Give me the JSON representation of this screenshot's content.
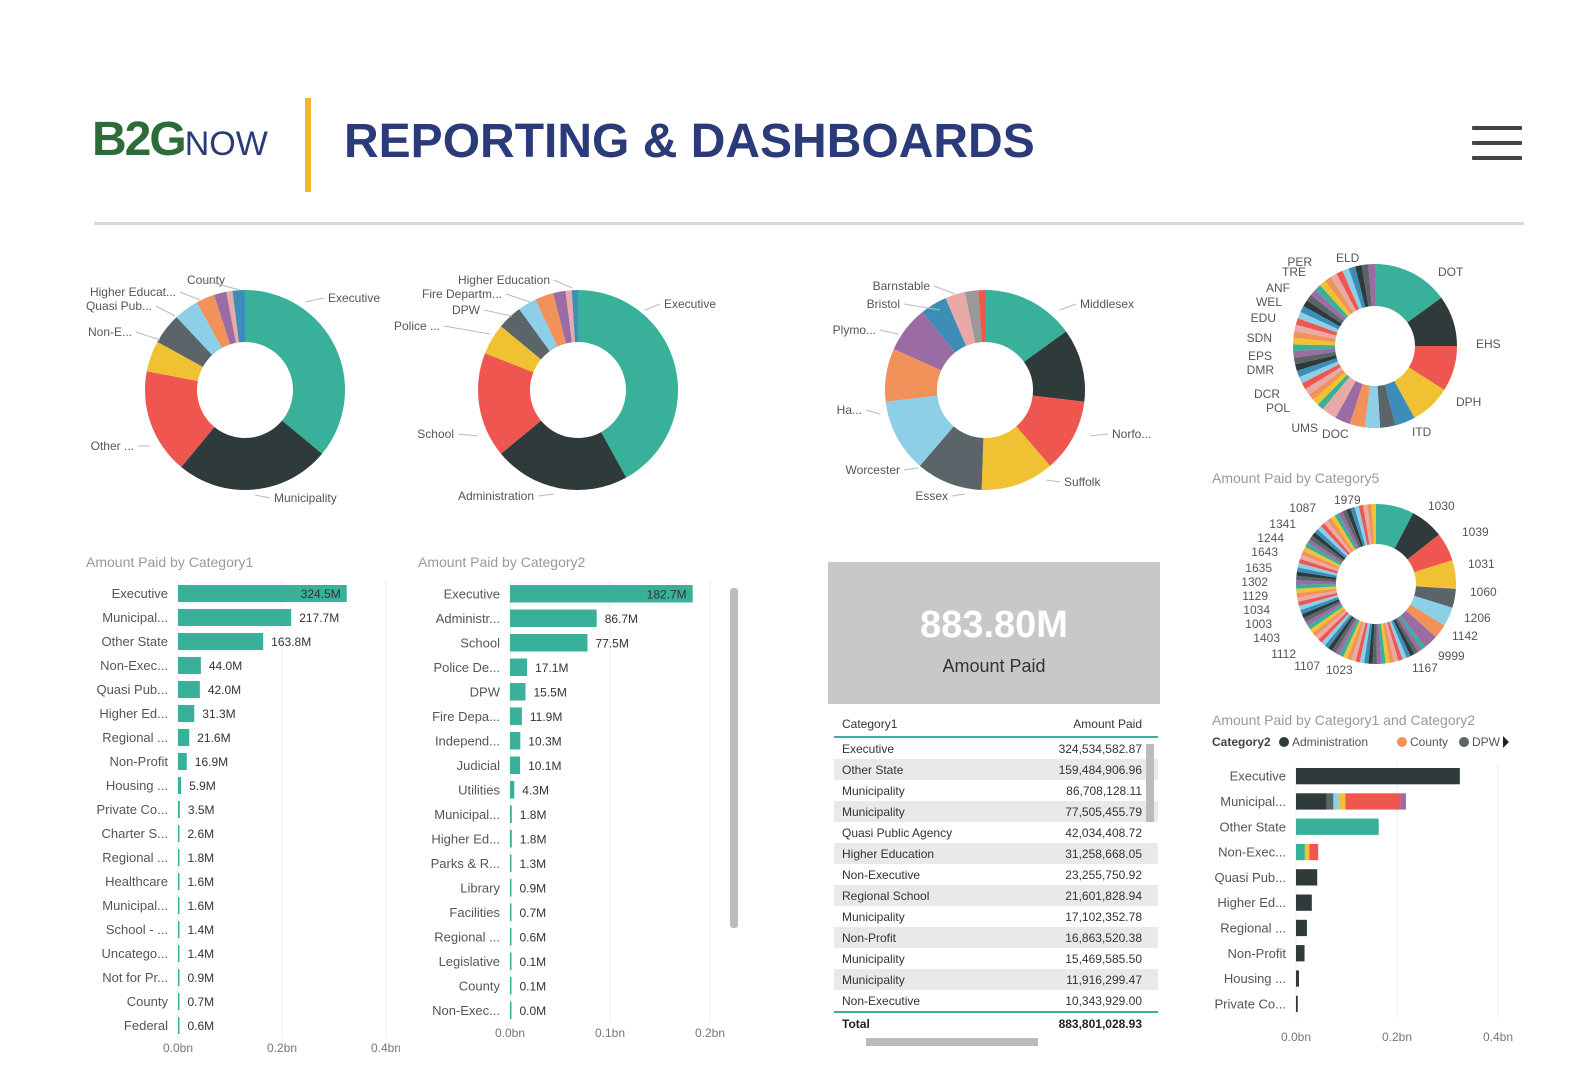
{
  "header": {
    "logo_b2g": "B2G",
    "logo_now": "NOW",
    "title": "REPORTING & DASHBOARDS",
    "menu_icon": "hamburger-icon"
  },
  "colors": {
    "teal": "#38b09a",
    "dark": "#2f3a3b",
    "red": "#ef5650",
    "yellow": "#f0c233",
    "slate": "#5b6469",
    "lightblue": "#8ccfe6",
    "orange": "#f09259",
    "purple": "#9a6ca3",
    "blue": "#3c8eb9",
    "pink": "#e9a9a6",
    "accent_gold": "#f1b82d",
    "navy": "#2b3a78"
  },
  "donuts": [
    {
      "labels": [
        "County",
        "Executive",
        "Higher Educat...",
        "Quasi Pub...",
        "Non-E...",
        "Other ...",
        "Municipality"
      ]
    },
    {
      "labels": [
        "Higher Education",
        "Fire Departm...",
        "DPW",
        "Police ...",
        "Executive",
        "School",
        "Administration"
      ]
    },
    {
      "labels": [
        "Barnstable",
        "Bristol",
        "Plymo...",
        "Ha...",
        "Worcester",
        "Essex",
        "Middlesex",
        "Norfo...",
        "Suffolk"
      ]
    },
    {
      "labels": [
        "PER",
        "ELD",
        "TRE",
        "ANF",
        "WEL",
        "EDU",
        "SDN",
        "EPS",
        "DMR",
        "DCR",
        "POL",
        "UMS",
        "DOC",
        "DOT",
        "EHS",
        "DPH",
        "ITD"
      ]
    },
    {
      "title": "Amount Paid by Category5",
      "labels": [
        "1087",
        "1979",
        "1341",
        "1244",
        "1643",
        "1635",
        "1302",
        "1129",
        "1034",
        "1003",
        "1403",
        "1112",
        "1107",
        "1023",
        "1030",
        "1039",
        "1031",
        "1060",
        "1206",
        "1142",
        "9999",
        "1167"
      ]
    }
  ],
  "chart_data": [
    {
      "type": "bar",
      "title": "Amount Paid by Category1",
      "categories": [
        "Executive",
        "Municipal...",
        "Other State",
        "Non-Exec...",
        "Quasi Pub...",
        "Higher Ed...",
        "Regional ...",
        "Non-Profit",
        "Housing ...",
        "Private Co...",
        "Charter S...",
        "Regional ...",
        "Healthcare",
        "Municipal...",
        "School - ...",
        "Uncatego...",
        "Not for Pr...",
        "County",
        "Federal"
      ],
      "values": [
        324.5,
        217.7,
        163.8,
        44.0,
        42.0,
        31.3,
        21.6,
        16.9,
        5.9,
        3.5,
        2.6,
        1.8,
        1.6,
        1.6,
        1.4,
        1.4,
        0.9,
        0.7,
        0.6
      ],
      "value_labels": [
        "324.5M",
        "217.7M",
        "163.8M",
        "44.0M",
        "42.0M",
        "31.3M",
        "21.6M",
        "16.9M",
        "5.9M",
        "3.5M",
        "2.6M",
        "1.8M",
        "1.6M",
        "1.6M",
        "1.4M",
        "1.4M",
        "0.9M",
        "0.7M",
        "0.6M"
      ],
      "xlim": [
        0,
        400
      ],
      "ticks": [
        "0.0bn",
        "0.2bn",
        "0.4bn"
      ]
    },
    {
      "type": "bar",
      "title": "Amount Paid by Category2",
      "categories": [
        "Executive",
        "Administr...",
        "School",
        "Police De...",
        "DPW",
        "Fire Depa...",
        "Independ...",
        "Judicial",
        "Utilities",
        "Municipal...",
        "Higher Ed...",
        "Parks & R...",
        "Library",
        "Facilities",
        "Regional ...",
        "Legislative",
        "County",
        "Non-Exec..."
      ],
      "values": [
        182.7,
        86.7,
        77.5,
        17.1,
        15.5,
        11.9,
        10.3,
        10.1,
        4.3,
        1.8,
        1.8,
        1.3,
        0.9,
        0.7,
        0.6,
        0.1,
        0.1,
        0.0
      ],
      "value_labels": [
        "182.7M",
        "86.7M",
        "77.5M",
        "17.1M",
        "15.5M",
        "11.9M",
        "10.3M",
        "10.1M",
        "4.3M",
        "1.8M",
        "1.8M",
        "1.3M",
        "0.9M",
        "0.7M",
        "0.6M",
        "0.1M",
        "0.1M",
        "0.0M"
      ],
      "xlim": [
        0,
        200
      ],
      "ticks": [
        "0.0bn",
        "0.1bn",
        "0.2bn"
      ]
    },
    {
      "type": "bar",
      "title": "Amount Paid by Category1 and Category2",
      "legend_title": "Category2",
      "legend": [
        "Administration",
        "County",
        "DPW"
      ],
      "categories": [
        "Executive",
        "Municipal...",
        "Other State",
        "Non-Exec...",
        "Quasi Pub...",
        "Higher Ed...",
        "Regional ...",
        "Non-Profit",
        "Housing ...",
        "Private Co..."
      ],
      "values": [
        324.5,
        217.7,
        163.8,
        44.0,
        42.0,
        31.3,
        21.6,
        16.9,
        5.9,
        3.5
      ],
      "xlim": [
        0,
        400
      ],
      "ticks": [
        "0.0bn",
        "0.2bn",
        "0.4bn"
      ]
    }
  ],
  "card": {
    "value": "883.80M",
    "label": "Amount Paid"
  },
  "table": {
    "col1": "Category1",
    "col2": "Amount Paid",
    "rows": [
      [
        "Executive",
        "324,534,582.87"
      ],
      [
        "Other State",
        "159,484,906.96"
      ],
      [
        "Municipality",
        "86,708,128.11"
      ],
      [
        "Municipality",
        "77,505,455.79"
      ],
      [
        "Quasi Public Agency",
        "42,034,408.72"
      ],
      [
        "Higher Education",
        "31,258,668.05"
      ],
      [
        "Non-Executive",
        "23,255,750.92"
      ],
      [
        "Regional School",
        "21,601,828.94"
      ],
      [
        "Municipality",
        "17,102,352.78"
      ],
      [
        "Non-Profit",
        "16,863,520.38"
      ],
      [
        "Municipality",
        "15,469,585.50"
      ],
      [
        "Municipality",
        "11,916,299.47"
      ],
      [
        "Non-Executive",
        "10,343,929.00"
      ]
    ],
    "total_label": "Total",
    "total_value": "883,801,028.93"
  }
}
